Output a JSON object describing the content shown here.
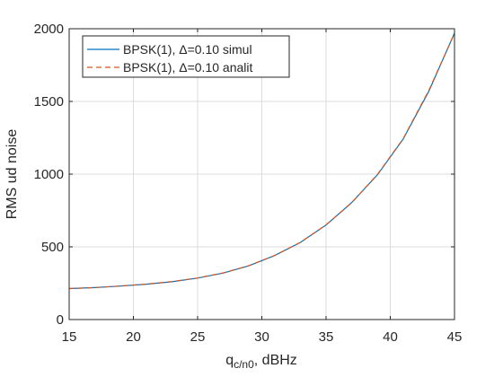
{
  "chart_data": {
    "type": "line",
    "xlabel_main": "q",
    "xlabel_sub": "c/n0",
    "xlabel_rest": ", dBHz",
    "ylabel": "RMS ud noise",
    "xlim": [
      15,
      45
    ],
    "ylim": [
      0,
      2000
    ],
    "xticks": [
      15,
      20,
      25,
      30,
      35,
      40,
      45
    ],
    "yticks": [
      0,
      500,
      1000,
      1500,
      2000
    ],
    "grid": true,
    "legend_position": "top-left",
    "x": [
      15,
      17,
      19,
      21,
      23,
      25,
      27,
      29,
      31,
      33,
      35,
      37,
      39,
      41,
      43,
      45
    ],
    "series": [
      {
        "name": "BPSK(1), Δ=0.10 simul",
        "color": "#0072BD",
        "style": "solid",
        "values": [
          213,
          220,
          230,
          243,
          260,
          285,
          320,
          370,
          440,
          530,
          650,
          805,
          995,
          1240,
          1570,
          1970
        ]
      },
      {
        "name": "BPSK(1), Δ=0.10 analit",
        "color": "#D95319",
        "style": "dashed",
        "values": [
          213,
          220,
          231,
          244,
          261,
          286,
          321,
          371,
          441,
          531,
          651,
          803,
          998,
          1243,
          1575,
          1968
        ]
      }
    ]
  }
}
